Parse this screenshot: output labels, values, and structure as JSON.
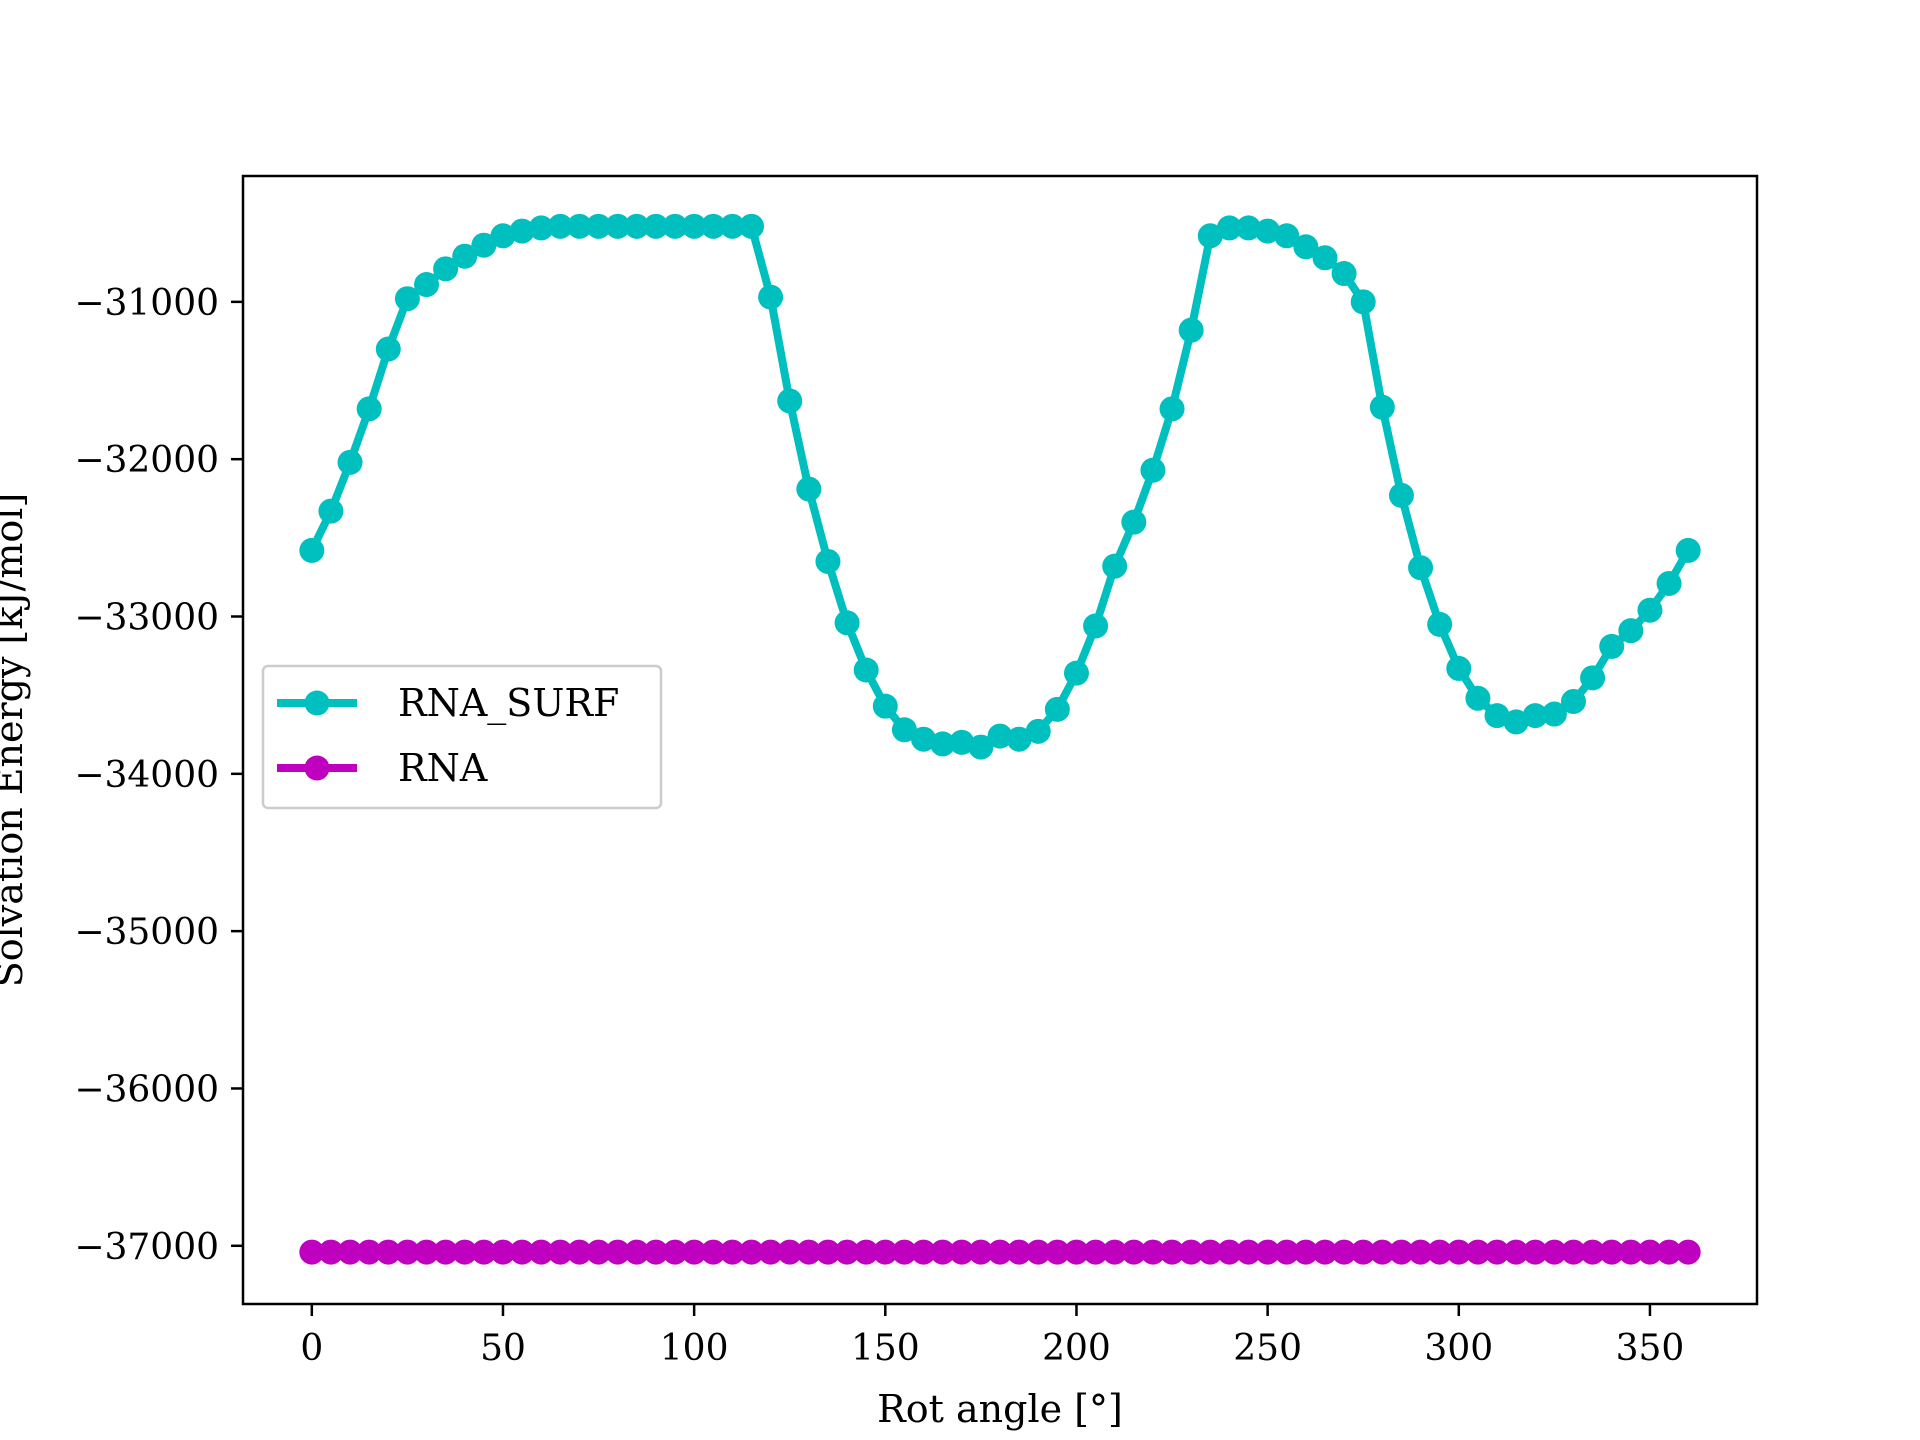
{
  "chart_data": {
    "type": "line",
    "xlabel": "Rot angle [°]",
    "ylabel": "Solvation Energy [kJ/mol]",
    "xlim": [
      -18,
      378
    ],
    "ylim": [
      -37370,
      -30200
    ],
    "xticks": [
      0,
      50,
      100,
      150,
      200,
      250,
      300,
      350
    ],
    "yticks": [
      -31000,
      -32000,
      -33000,
      -34000,
      -35000,
      -36000,
      -37000
    ],
    "ytick_labels": [
      "−31000",
      "−32000",
      "−33000",
      "−34000",
      "−35000",
      "−36000",
      "−37000"
    ],
    "grid": false,
    "legend_position": "center-left",
    "x": [
      0,
      5,
      10,
      15,
      20,
      25,
      30,
      35,
      40,
      45,
      50,
      55,
      60,
      65,
      70,
      75,
      80,
      85,
      90,
      95,
      100,
      105,
      110,
      115,
      120,
      125,
      130,
      135,
      140,
      145,
      150,
      155,
      160,
      165,
      170,
      175,
      180,
      185,
      190,
      195,
      200,
      205,
      210,
      215,
      220,
      225,
      230,
      235,
      240,
      245,
      250,
      255,
      260,
      265,
      270,
      275,
      280,
      285,
      290,
      295,
      300,
      305,
      310,
      315,
      320,
      325,
      330,
      335,
      340,
      345,
      350,
      355,
      360
    ],
    "series": [
      {
        "name": "RNA_SURF",
        "color": "#00bfbf",
        "values": [
          -32580,
          -32330,
          -32020,
          -31680,
          -31300,
          -30980,
          -30890,
          -30790,
          -30710,
          -30640,
          -30580,
          -30550,
          -30530,
          -30520,
          -30520,
          -30520,
          -30520,
          -30520,
          -30520,
          -30520,
          -30520,
          -30520,
          -30520,
          -30520,
          -30970,
          -31630,
          -32190,
          -32650,
          -33040,
          -33340,
          -33570,
          -33720,
          -33780,
          -33810,
          -33800,
          -33830,
          -33760,
          -33780,
          -33730,
          -33590,
          -33360,
          -33060,
          -32680,
          -32400,
          -32070,
          -31680,
          -31180,
          -30580,
          -30530,
          -30530,
          -30550,
          -30580,
          -30650,
          -30720,
          -30820,
          -31000,
          -31670,
          -32230,
          -32690,
          -33050,
          -33330,
          -33520,
          -33630,
          -33670,
          -33630,
          -33620,
          -33540,
          -33390,
          -33190,
          -33090,
          -32960,
          -32790,
          -32580
        ]
      },
      {
        "name": "RNA",
        "color": "#bf00bf",
        "values": [
          -37040,
          -37040,
          -37040,
          -37040,
          -37040,
          -37040,
          -37040,
          -37040,
          -37040,
          -37040,
          -37040,
          -37040,
          -37040,
          -37040,
          -37040,
          -37040,
          -37040,
          -37040,
          -37040,
          -37040,
          -37040,
          -37040,
          -37040,
          -37040,
          -37040,
          -37040,
          -37040,
          -37040,
          -37040,
          -37040,
          -37040,
          -37040,
          -37040,
          -37040,
          -37040,
          -37040,
          -37040,
          -37040,
          -37040,
          -37040,
          -37040,
          -37040,
          -37040,
          -37040,
          -37040,
          -37040,
          -37040,
          -37040,
          -37040,
          -37040,
          -37040,
          -37040,
          -37040,
          -37040,
          -37040,
          -37040,
          -37040,
          -37040,
          -37040,
          -37040,
          -37040,
          -37040,
          -37040,
          -37040,
          -37040,
          -37040,
          -37040,
          -37040,
          -37040,
          -37040,
          -37040,
          -37040,
          -37040
        ]
      }
    ]
  }
}
